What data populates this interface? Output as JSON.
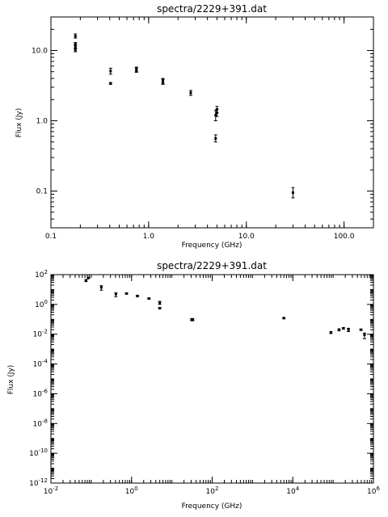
{
  "chart_data": [
    {
      "type": "scatter",
      "title": "spectra/2229+391.dat",
      "xlabel": "Frequency (GHz)",
      "ylabel": "Flux (Jy)",
      "xscale": "log",
      "yscale": "log",
      "xlim": [
        0.1,
        200
      ],
      "ylim": [
        0.03,
        30
      ],
      "xticks": [
        {
          "v": 0.1,
          "label": "0.1"
        },
        {
          "v": 1,
          "label": "1.0"
        },
        {
          "v": 10,
          "label": "10.0"
        },
        {
          "v": 100,
          "label": "100.0"
        }
      ],
      "yticks": [
        {
          "v": 0.1,
          "label": "0.1"
        },
        {
          "v": 1,
          "label": "1.0"
        },
        {
          "v": 10,
          "label": "10.0"
        }
      ],
      "points": [
        {
          "x": 0.178,
          "y": 16.0,
          "lo": 15.0,
          "hi": 17.2
        },
        {
          "x": 0.178,
          "y": 12.5,
          "lo": 12.0,
          "hi": 13.0
        },
        {
          "x": 0.178,
          "y": 11.2,
          "lo": 10.6,
          "hi": 11.8
        },
        {
          "x": 0.178,
          "y": 10.2,
          "lo": 9.6,
          "hi": 10.8
        },
        {
          "x": 0.408,
          "y": 5.1,
          "lo": 4.6,
          "hi": 5.6
        },
        {
          "x": 0.408,
          "y": 3.4,
          "lo": 3.3,
          "hi": 3.5
        },
        {
          "x": 0.75,
          "y": 5.4,
          "lo": 5.0,
          "hi": 5.8
        },
        {
          "x": 0.75,
          "y": 5.3,
          "lo": 4.9,
          "hi": 5.7
        },
        {
          "x": 1.4,
          "y": 3.7,
          "lo": 3.4,
          "hi": 4.0
        },
        {
          "x": 1.4,
          "y": 3.6,
          "lo": 3.3,
          "hi": 3.9
        },
        {
          "x": 2.7,
          "y": 2.5,
          "lo": 2.3,
          "hi": 2.7
        },
        {
          "x": 4.85,
          "y": 1.2,
          "lo": 1.0,
          "hi": 1.4
        },
        {
          "x": 4.85,
          "y": 0.56,
          "lo": 0.5,
          "hi": 0.63
        },
        {
          "x": 5.0,
          "y": 1.45,
          "lo": 1.3,
          "hi": 1.6
        },
        {
          "x": 5.0,
          "y": 1.3,
          "lo": 1.15,
          "hi": 1.45
        },
        {
          "x": 30,
          "y": 0.095,
          "lo": 0.08,
          "hi": 0.112
        }
      ]
    },
    {
      "type": "scatter",
      "title": "spectra/2229+391.dat",
      "xlabel": "Frequency (GHz)",
      "ylabel": "Flux (Jy)",
      "xscale": "log",
      "yscale": "log",
      "xlim": [
        0.01,
        1000000
      ],
      "ylim": [
        1e-12,
        100
      ],
      "xticks": [
        {
          "v": 0.01,
          "base": "10",
          "exp": "-2"
        },
        {
          "v": 1,
          "base": "10",
          "exp": "0"
        },
        {
          "v": 100,
          "base": "10",
          "exp": "2"
        },
        {
          "v": 10000,
          "base": "10",
          "exp": "4"
        },
        {
          "v": 1000000,
          "base": "10",
          "exp": "6"
        }
      ],
      "yticks": [
        {
          "v": 1e-12,
          "base": "10",
          "exp": "-12"
        },
        {
          "v": 1e-10,
          "base": "10",
          "exp": "-10"
        },
        {
          "v": 1e-08,
          "base": "10",
          "exp": "-8"
        },
        {
          "v": 1e-06,
          "base": "10",
          "exp": "-6"
        },
        {
          "v": 0.0001,
          "base": "10",
          "exp": "-4"
        },
        {
          "v": 0.01,
          "base": "10",
          "exp": "-2"
        },
        {
          "v": 1,
          "base": "10",
          "exp": "0"
        },
        {
          "v": 100,
          "base": "10",
          "exp": "2"
        }
      ],
      "points": [
        {
          "x": 0.074,
          "y": 40,
          "lo": 34,
          "hi": 47
        },
        {
          "x": 0.085,
          "y": 60,
          "lo": 54,
          "hi": 66
        },
        {
          "x": 0.178,
          "y": 14,
          "lo": 9,
          "hi": 18
        },
        {
          "x": 0.408,
          "y": 5,
          "lo": 3.3,
          "hi": 6
        },
        {
          "x": 0.75,
          "y": 5.4,
          "lo": 4.9,
          "hi": 5.9
        },
        {
          "x": 1.4,
          "y": 3.7,
          "lo": 3.3,
          "hi": 4.1
        },
        {
          "x": 2.7,
          "y": 2.5,
          "lo": 2.3,
          "hi": 2.7
        },
        {
          "x": 5,
          "y": 1.3,
          "lo": 1.0,
          "hi": 1.6
        },
        {
          "x": 5,
          "y": 0.56,
          "lo": 0.5,
          "hi": 0.63
        },
        {
          "x": 31,
          "y": 0.095,
          "lo": 0.08,
          "hi": 0.112
        },
        {
          "x": 33,
          "y": 0.095,
          "lo": 0.08,
          "hi": 0.112
        },
        {
          "x": 6000,
          "y": 0.12,
          "lo": 0.11,
          "hi": 0.13
        },
        {
          "x": 88000,
          "y": 0.013,
          "lo": 0.011,
          "hi": 0.015
        },
        {
          "x": 140000,
          "y": 0.02,
          "lo": 0.017,
          "hi": 0.023
        },
        {
          "x": 180000,
          "y": 0.025,
          "lo": 0.022,
          "hi": 0.028
        },
        {
          "x": 240000,
          "y": 0.02,
          "lo": 0.015,
          "hi": 0.025
        },
        {
          "x": 490000,
          "y": 0.02,
          "lo": 0.018,
          "hi": 0.022
        },
        {
          "x": 600000,
          "y": 0.009,
          "lo": 0.005,
          "hi": 0.012
        }
      ]
    }
  ]
}
